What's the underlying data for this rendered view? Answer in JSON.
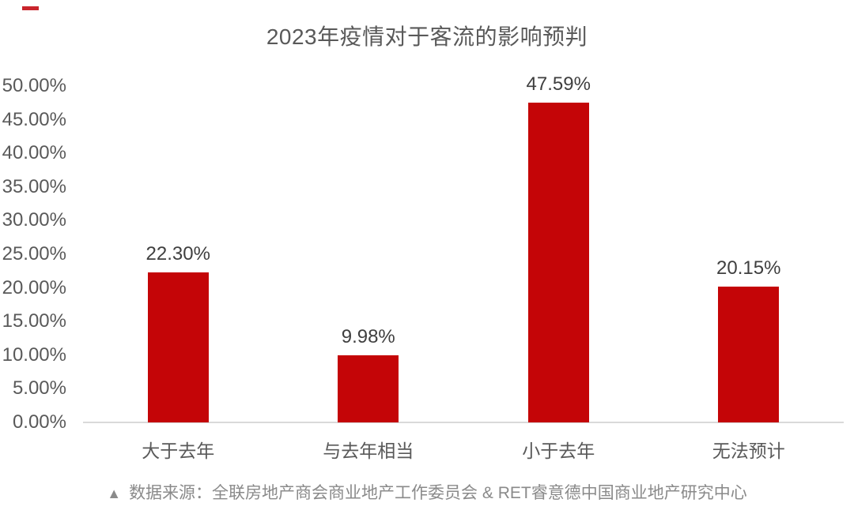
{
  "title": "2023年疫情对于客流的影响预判",
  "accent_dash_color": "#c9252c",
  "chart_data": {
    "type": "bar",
    "title": "2023年疫情对于客流的影响预判",
    "categories": [
      "大于去年",
      "与去年相当",
      "小于去年",
      "无法预计"
    ],
    "values": [
      22.3,
      9.98,
      47.59,
      20.15
    ],
    "value_labels": [
      "22.30%",
      "9.98%",
      "47.59%",
      "20.15%"
    ],
    "yticks": [
      "50.00%",
      "45.00%",
      "40.00%",
      "35.00%",
      "30.00%",
      "25.00%",
      "20.00%",
      "15.00%",
      "10.00%",
      "5.00%",
      "0.00%"
    ],
    "ylim": [
      0,
      50
    ],
    "xlabel": "",
    "ylabel": "",
    "bar_color": "#c40507",
    "grid": false,
    "legend": false
  },
  "footer": {
    "marker": "▲",
    "text": "数据来源：全联房地产商会商业地产工作委员会 & RET睿意德中国商业地产研究中心"
  }
}
